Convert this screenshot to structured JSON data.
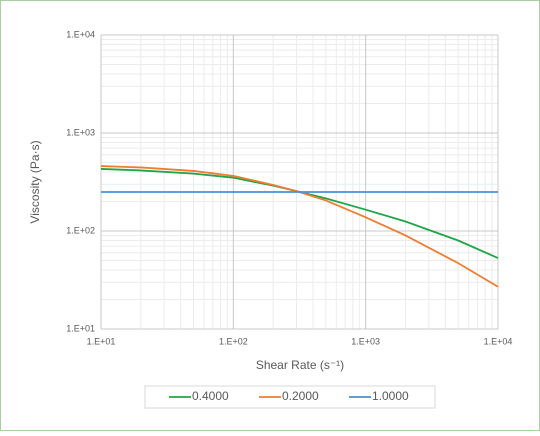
{
  "chart_data": {
    "type": "line",
    "x_label": "Shear Rate (s⁻¹)",
    "y_label": "Viscosity (Pa·s)",
    "log_x": true,
    "log_y": true,
    "grid": true,
    "minor_grid": true,
    "legend": "bottom",
    "xlim": [
      10,
      10000
    ],
    "ylim": [
      10,
      10000
    ],
    "xticks": [
      {
        "value": 10,
        "label": "1.E+01"
      },
      {
        "value": 100,
        "label": "1.E+02"
      },
      {
        "value": 1000,
        "label": "1.E+03"
      },
      {
        "value": 10000,
        "label": "1.E+04"
      }
    ],
    "yticks": [
      {
        "value": 10,
        "label": "1.E+01"
      },
      {
        "value": 100,
        "label": "1.E+02"
      },
      {
        "value": 1000,
        "label": "1.E+03"
      },
      {
        "value": 10000,
        "label": "1.E+04"
      }
    ],
    "x": [
      10,
      20,
      50,
      100,
      200,
      300,
      500,
      1000,
      2000,
      5000,
      10000
    ],
    "series": [
      {
        "name": "0.4000",
        "color": "#1fa548",
        "values": [
          430,
          415,
          385,
          350,
          290,
          255,
          215,
          165,
          125,
          80,
          53
        ]
      },
      {
        "name": "0.2000",
        "color": "#ed7d31",
        "values": [
          460,
          445,
          410,
          365,
          295,
          255,
          205,
          138,
          90,
          47,
          27
        ]
      },
      {
        "name": "1.0000",
        "color": "#4a90d2",
        "values": [
          250,
          250,
          250,
          250,
          250,
          250,
          250,
          250,
          250,
          250,
          250
        ]
      }
    ]
  }
}
